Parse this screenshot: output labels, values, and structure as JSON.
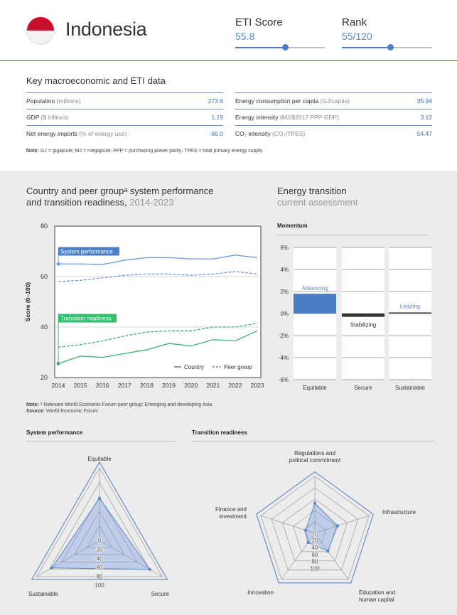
{
  "header": {
    "country": "Indonesia",
    "eti_score_label": "ETI Score",
    "eti_score_value": "55.8",
    "eti_score_fraction": 0.56,
    "rank_label": "Rank",
    "rank_value": "55/120",
    "rank_fraction": 0.54,
    "flag_colors": [
      "#c8102e",
      "#f3f3f3"
    ]
  },
  "macro": {
    "title": "Key macroeconomic and ETI data",
    "left_rows": [
      {
        "label": "Population",
        "unit": "(millions)",
        "value": "273.8"
      },
      {
        "label": "GDP",
        "unit": "($ trillions)",
        "value": "1.19"
      },
      {
        "label": "Net energy imports",
        "unit": "(% of energy use)",
        "value": "-86.0"
      }
    ],
    "right_rows": [
      {
        "label": "Energy consumption per capita",
        "unit": "(GJ/capita)",
        "value": "35.94"
      },
      {
        "label": "Energy intensity",
        "unit": "(MJ/$2017 PPP GDP)",
        "value": "3.12"
      },
      {
        "label": "CO₂ intensity",
        "unit": "(CO₂/TPES)",
        "value": "54.47"
      }
    ],
    "note_label": "Note:",
    "note_text": "GJ = gigajoule; MJ = megajoule; PPP = purchasing power parity; TPES = total primary energy supply"
  },
  "performance": {
    "title_line1": "Country and peer groupᵃ system performance",
    "title_line2": "and transition readiness,",
    "title_years": "2014-2023",
    "note_label": "Note:",
    "note_text": "ᵃ Relevant World Economic Forum peer group: Emerging and developing Asia",
    "source_label": "Source:",
    "source_text": "World Economic Forum"
  },
  "transition": {
    "title": "Energy transition",
    "subtitle": "current assessment",
    "momentum_label": "Momentum"
  },
  "radar_titles": {
    "system": "System performance",
    "readiness": "Transition readiness"
  },
  "colors": {
    "accent": "#4a7fc7",
    "country_line": "#6b9bd8",
    "readiness_green": "#3cb371",
    "readiness_label_bg": "#2fbf6f",
    "stabilizing_bar": "#333333"
  },
  "chart_data": [
    {
      "type": "line",
      "x": [
        2014,
        2015,
        2016,
        2017,
        2018,
        2019,
        2020,
        2021,
        2022,
        2023
      ],
      "ylabel": "Score (0–100)",
      "ylim": [
        20,
        80
      ],
      "yticks": [
        20,
        40,
        60,
        80
      ],
      "grid": true,
      "legend": {
        "placement": "bottom-right",
        "country": "Country",
        "peer": "Peer group"
      },
      "series": [
        {
          "name": "System performance",
          "group": "Country",
          "dash": false,
          "color": "#6b9bd8",
          "values": [
            65,
            65,
            64.8,
            66.5,
            67.5,
            67.5,
            67,
            67,
            68.5,
            67.5
          ]
        },
        {
          "name": "System performance",
          "group": "Peer group",
          "dash": true,
          "color": "#6b9bd8",
          "values": [
            58,
            58.5,
            59.5,
            60.5,
            61,
            61,
            60.5,
            61,
            62,
            61
          ]
        },
        {
          "name": "Transition readiness",
          "group": "Country",
          "dash": false,
          "color": "#3cb371",
          "values": [
            25.5,
            28.5,
            28,
            29.5,
            31,
            33.5,
            32.5,
            35,
            34.5,
            38.5
          ]
        },
        {
          "name": "Transition readiness",
          "group": "Peer group",
          "dash": true,
          "color": "#3cb371",
          "values": [
            32,
            33,
            34.5,
            36.5,
            38,
            38.5,
            38.5,
            40,
            40,
            41.5
          ]
        }
      ],
      "labels": [
        {
          "text": "System performance",
          "series": 0,
          "year": 2014
        },
        {
          "text": "Transition readiness",
          "series": 2,
          "year": 2014
        }
      ]
    },
    {
      "type": "bar",
      "categories": [
        "Equitable",
        "Secure",
        "Sustainable"
      ],
      "values": [
        1.8,
        -0.3,
        0.1
      ],
      "bar_labels": [
        "Advancing",
        "Stabilizing",
        "Leading"
      ],
      "yticks": [
        "6%",
        "4%",
        "2%",
        "0%",
        "-2%",
        "-4%",
        "-6%"
      ],
      "ylim": [
        -6,
        6
      ]
    },
    {
      "type": "radar",
      "title": "System performance",
      "axes": [
        "Equitable",
        "Secure",
        "Sustainable"
      ],
      "values": [
        58,
        80,
        76
      ],
      "ring_labels": [
        "0",
        "20",
        "40",
        "60",
        "80",
        "100"
      ]
    },
    {
      "type": "radar",
      "title": "Transition readiness",
      "axes": [
        "Regulations and political commitment",
        "Infrastructure",
        "Education and human capital",
        "Innovation",
        "Finance and investment"
      ],
      "values": [
        53,
        42,
        39,
        20,
        17
      ],
      "ring_labels": [
        "0",
        "20",
        "40",
        "60",
        "80",
        "100"
      ]
    }
  ]
}
